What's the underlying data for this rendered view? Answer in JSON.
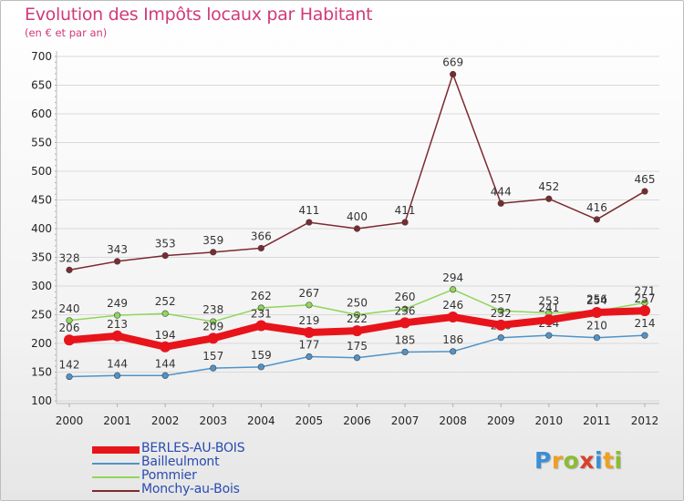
{
  "header": {
    "title": "Evolution des Impôts locaux par Habitant",
    "subtitle": "(en € et par an)"
  },
  "logo": {
    "text": "Proxiti"
  },
  "chart_data": {
    "type": "line",
    "x": [
      2000,
      2001,
      2002,
      2003,
      2004,
      2005,
      2006,
      2007,
      2008,
      2009,
      2010,
      2011,
      2012
    ],
    "ylim": [
      100,
      700
    ],
    "yticks": [
      100,
      150,
      200,
      250,
      300,
      350,
      400,
      450,
      500,
      550,
      600,
      650,
      700
    ],
    "grid": "y-major",
    "legend_position": "bottom-left",
    "series": [
      {
        "name": "Monchy-au-Bois",
        "color": "#7b2a2f",
        "values": [
          328,
          343,
          353,
          359,
          366,
          411,
          400,
          411,
          669,
          444,
          452,
          416,
          465
        ]
      },
      {
        "name": "Pommier",
        "color": "#8fd65a",
        "values": [
          240,
          249,
          252,
          238,
          262,
          267,
          250,
          260,
          294,
          257,
          253,
          256,
          271
        ]
      },
      {
        "name": "Bailleulmont",
        "color": "#4f93c9",
        "values": [
          142,
          144,
          144,
          157,
          159,
          177,
          175,
          185,
          186,
          210,
          214,
          210,
          214
        ]
      },
      {
        "name": "BERLES-AU-BOIS",
        "color": "#e8141b",
        "values": [
          206,
          213,
          194,
          209,
          231,
          219,
          222,
          236,
          246,
          232,
          241,
          254,
          257
        ]
      }
    ],
    "legend_order": [
      "BERLES-AU-BOIS",
      "Bailleulmont",
      "Pommier",
      "Monchy-au-Bois"
    ]
  }
}
